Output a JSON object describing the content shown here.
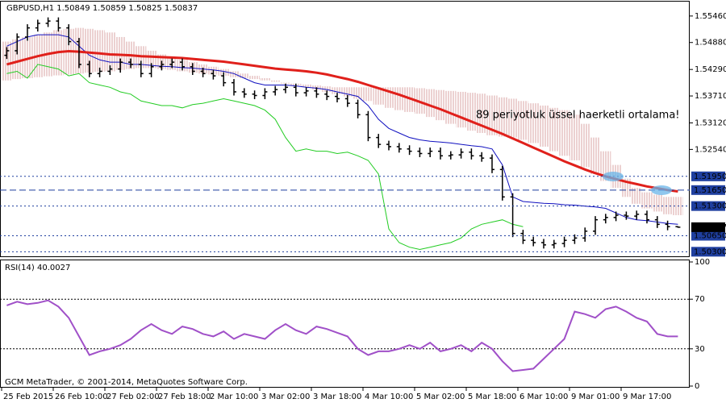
{
  "chart_data": [
    {
      "type": "candlestick",
      "symbol": "GBPUSD,H1",
      "bar_color": "#000000",
      "annotation": "89 periyotluk üssel haerketli ortalama!",
      "annotation_color": "#e0201b",
      "categories": [
        "25 Feb 2015",
        null,
        null,
        null,
        null,
        "26 Feb 10:00",
        null,
        null,
        null,
        null,
        "27 Feb 02:00",
        null,
        null,
        null,
        null,
        "27 Feb 18:00",
        null,
        null,
        null,
        null,
        "2 Mar 10:00",
        null,
        null,
        null,
        null,
        "3 Mar 02:00",
        null,
        null,
        null,
        null,
        "3 Mar 18:00",
        null,
        null,
        null,
        null,
        "4 Mar 10:00",
        null,
        null,
        null,
        null,
        "5 Mar 02:00",
        null,
        null,
        null,
        null,
        "5 Mar 18:00",
        null,
        null,
        null,
        null,
        "6 Mar 10:00",
        null,
        null,
        null,
        null,
        "9 Mar 01:00",
        null,
        null,
        null,
        null,
        "9 Mar 17:00",
        null,
        null,
        null,
        null,
        null
      ],
      "open": [
        1.546,
        1.547,
        1.55,
        1.552,
        1.553,
        1.5535,
        1.552,
        1.549,
        1.544,
        1.542,
        1.5425,
        1.543,
        1.5445,
        1.544,
        1.542,
        1.5435,
        1.544,
        1.5445,
        1.5435,
        1.5425,
        1.542,
        1.5415,
        1.54,
        1.538,
        1.5375,
        1.5372,
        1.538,
        1.5385,
        1.539,
        1.5378,
        1.5382,
        1.5375,
        1.537,
        1.5365,
        1.5355,
        1.533,
        1.528,
        1.5265,
        1.526,
        1.5255,
        1.525,
        1.5245,
        1.525,
        1.524,
        1.5242,
        1.5248,
        1.524,
        1.5235,
        1.521,
        1.515,
        1.507,
        1.5055,
        1.505,
        1.5045,
        1.5048,
        1.5055,
        1.506,
        1.5075,
        1.51,
        1.5105,
        1.511,
        1.5108,
        1.5112,
        1.51,
        1.509,
        1.50849
      ],
      "high": [
        1.5478,
        1.5508,
        1.5528,
        1.5538,
        1.5543,
        1.5543,
        1.5528,
        1.5498,
        1.5448,
        1.5433,
        1.5438,
        1.5453,
        1.5453,
        1.5448,
        1.5443,
        1.5448,
        1.5453,
        1.5453,
        1.5443,
        1.5433,
        1.5428,
        1.5423,
        1.5408,
        1.5388,
        1.5383,
        1.5388,
        1.5393,
        1.5398,
        1.5398,
        1.539,
        1.539,
        1.5383,
        1.5378,
        1.5373,
        1.5363,
        1.5338,
        1.5288,
        1.5273,
        1.5268,
        1.5263,
        1.5258,
        1.5258,
        1.5258,
        1.525,
        1.5256,
        1.5256,
        1.5248,
        1.5243,
        1.5218,
        1.5158,
        1.5078,
        1.5063,
        1.5058,
        1.5056,
        1.5063,
        1.5068,
        1.5083,
        1.5108,
        1.5113,
        1.5118,
        1.5118,
        1.512,
        1.512,
        1.5108,
        1.5098,
        1.50859
      ],
      "low": [
        1.5452,
        1.5462,
        1.5492,
        1.5512,
        1.5522,
        1.5512,
        1.5482,
        1.5432,
        1.5412,
        1.5412,
        1.5417,
        1.5422,
        1.5432,
        1.5412,
        1.5412,
        1.5427,
        1.5432,
        1.5427,
        1.5417,
        1.5412,
        1.5407,
        1.5392,
        1.5372,
        1.5367,
        1.5364,
        1.5364,
        1.5372,
        1.5377,
        1.537,
        1.537,
        1.5367,
        1.5362,
        1.5357,
        1.5347,
        1.5322,
        1.5272,
        1.5257,
        1.5252,
        1.5247,
        1.5242,
        1.5237,
        1.5237,
        1.5232,
        1.5232,
        1.5234,
        1.5232,
        1.5227,
        1.5202,
        1.5142,
        1.5062,
        1.5047,
        1.5042,
        1.5037,
        1.5037,
        1.504,
        1.5047,
        1.5052,
        1.5067,
        1.5092,
        1.5097,
        1.51,
        1.51,
        1.5092,
        1.5082,
        1.5077,
        1.50825
      ],
      "close": [
        1.547,
        1.55,
        1.552,
        1.553,
        1.5535,
        1.552,
        1.549,
        1.544,
        1.542,
        1.5425,
        1.543,
        1.5445,
        1.544,
        1.542,
        1.5435,
        1.544,
        1.5445,
        1.5435,
        1.5425,
        1.542,
        1.5415,
        1.54,
        1.538,
        1.5375,
        1.5372,
        1.538,
        1.5385,
        1.539,
        1.5378,
        1.5382,
        1.5375,
        1.537,
        1.5365,
        1.5355,
        1.533,
        1.528,
        1.5265,
        1.526,
        1.5255,
        1.525,
        1.5245,
        1.525,
        1.524,
        1.5242,
        1.5248,
        1.524,
        1.5235,
        1.521,
        1.515,
        1.507,
        1.5055,
        1.505,
        1.5045,
        1.5048,
        1.5055,
        1.506,
        1.5075,
        1.51,
        1.5105,
        1.511,
        1.5108,
        1.5112,
        1.51,
        1.509,
        1.50849,
        1.50837
      ],
      "cloud_color": "#d9a3a3",
      "cloud_upper": [
        1.549,
        1.5495,
        1.55,
        1.5505,
        1.551,
        1.5515,
        1.5518,
        1.552,
        1.5518,
        1.5515,
        1.551,
        1.55,
        1.549,
        1.548,
        1.547,
        1.5462,
        1.5455,
        1.545,
        1.5445,
        1.544,
        1.5435,
        1.543,
        1.5425,
        1.542,
        1.5415,
        1.541,
        1.5405,
        1.54,
        1.5398,
        1.5396,
        1.5394,
        1.5392,
        1.539,
        1.539,
        1.539,
        1.539,
        1.539,
        1.539,
        1.539,
        1.539,
        1.5388,
        1.5386,
        1.5384,
        1.5382,
        1.538,
        1.5378,
        1.5376,
        1.5372,
        1.5368,
        1.5365,
        1.536,
        1.5355,
        1.535,
        1.5345,
        1.534,
        1.533,
        1.531,
        1.528,
        1.525,
        1.522,
        1.519,
        1.517,
        1.516,
        1.5155,
        1.515,
        1.515
      ],
      "cloud_lower": [
        1.5405,
        1.5408,
        1.541,
        1.5412,
        1.5414,
        1.5416,
        1.5418,
        1.542,
        1.5422,
        1.5424,
        1.5425,
        1.5428,
        1.543,
        1.5432,
        1.5432,
        1.543,
        1.5428,
        1.5425,
        1.5422,
        1.542,
        1.5418,
        1.5415,
        1.5412,
        1.541,
        1.5408,
        1.5405,
        1.5402,
        1.5398,
        1.5394,
        1.539,
        1.5385,
        1.538,
        1.5375,
        1.537,
        1.5365,
        1.536,
        1.5352,
        1.5345,
        1.534,
        1.5336,
        1.5332,
        1.5325,
        1.5318,
        1.531,
        1.5302,
        1.5295,
        1.529,
        1.5285,
        1.5282,
        1.528,
        1.5275,
        1.5268,
        1.526,
        1.525,
        1.524,
        1.523,
        1.5215,
        1.52,
        1.5185,
        1.517,
        1.515,
        1.5135,
        1.5125,
        1.5118,
        1.5112,
        1.511
      ],
      "series": [
        {
          "color": "#22cc22",
          "width": 1,
          "values": [
            1.542,
            1.5425,
            1.541,
            1.544,
            1.5435,
            1.543,
            1.5415,
            1.542,
            1.54,
            1.5395,
            1.539,
            1.538,
            1.5375,
            1.536,
            1.5355,
            1.535,
            1.535,
            1.5345,
            1.5352,
            1.5355,
            1.536,
            1.5365,
            1.536,
            1.5355,
            1.535,
            1.534,
            1.532,
            1.528,
            1.525,
            1.5255,
            1.525,
            1.525,
            1.5245,
            1.5248,
            1.524,
            1.523,
            1.52,
            1.508,
            1.505,
            1.504,
            1.5035,
            1.504,
            1.5045,
            1.505,
            1.506,
            1.508,
            1.509,
            1.5095,
            1.51,
            1.509,
            1.5085,
            null,
            null,
            null,
            null,
            null,
            null,
            null,
            null,
            null,
            null,
            null,
            null,
            null,
            null,
            null
          ]
        },
        {
          "color": "#1010c0",
          "width": 1,
          "values": [
            1.548,
            1.549,
            1.55,
            1.5505,
            1.5505,
            1.5505,
            1.55,
            1.548,
            1.546,
            1.545,
            1.5445,
            1.5445,
            1.544,
            1.544,
            1.5438,
            1.5436,
            1.5435,
            1.5433,
            1.5432,
            1.543,
            1.5428,
            1.5425,
            1.542,
            1.541,
            1.54,
            1.5395,
            1.5395,
            1.5395,
            1.5393,
            1.539,
            1.5388,
            1.5385,
            1.538,
            1.5375,
            1.537,
            1.535,
            1.532,
            1.53,
            1.529,
            1.528,
            1.5275,
            1.5272,
            1.527,
            1.5268,
            1.5265,
            1.5262,
            1.526,
            1.5255,
            1.522,
            1.515,
            1.514,
            1.5138,
            1.5136,
            1.5135,
            1.5133,
            1.5132,
            1.513,
            1.5128,
            1.5125,
            1.5115,
            1.5105,
            1.51,
            1.5098,
            1.5095,
            1.5092,
            1.509
          ]
        },
        {
          "color": "#e0201b",
          "width": 3,
          "values": [
            1.544,
            1.5446,
            1.5452,
            1.5458,
            1.5463,
            1.5467,
            1.5469,
            1.5468,
            1.5466,
            1.5464,
            1.5462,
            1.5461,
            1.546,
            1.5458,
            1.5457,
            1.5456,
            1.5455,
            1.5454,
            1.5452,
            1.545,
            1.5448,
            1.5446,
            1.5443,
            1.544,
            1.5437,
            1.5434,
            1.5431,
            1.5429,
            1.5427,
            1.5425,
            1.5422,
            1.5418,
            1.5413,
            1.5408,
            1.5402,
            1.5395,
            1.5388,
            1.5381,
            1.5374,
            1.5366,
            1.5358,
            1.535,
            1.5342,
            1.5333,
            1.5324,
            1.5315,
            1.5306,
            1.5297,
            1.5288,
            1.5278,
            1.5268,
            1.5258,
            1.5248,
            1.5238,
            1.5228,
            1.5219,
            1.521,
            1.5202,
            1.5195,
            1.5189,
            1.5183,
            1.5178,
            1.5173,
            1.5169,
            1.5165,
            1.5162
          ]
        }
      ],
      "ylim": [
        1.502,
        1.5574
      ],
      "yticks": [
        {
          "value": 1.5546,
          "label": "1.55460"
        },
        {
          "value": 1.5488,
          "label": "1.54880"
        },
        {
          "value": 1.5429,
          "label": "1.54290"
        },
        {
          "value": 1.5371,
          "label": "1.53710"
        },
        {
          "value": 1.5312,
          "label": "1.53120"
        },
        {
          "value": 1.5254,
          "label": "1.52540"
        }
      ],
      "levels": [
        {
          "value": 1.5195,
          "label": "1.51950",
          "style": "dotted"
        },
        {
          "value": 1.5165,
          "label": "1.51650",
          "style": "dashed"
        },
        {
          "value": 1.513,
          "label": "1.51300",
          "style": "dotted"
        },
        {
          "value": 1.5065,
          "label": "1.50650",
          "style": "dotted"
        },
        {
          "value": 1.503,
          "label": "1.50300",
          "style": "dotted"
        }
      ],
      "level_color": "#1f3f9f"
    },
    {
      "type": "line",
      "title": "RSI(14)",
      "footer": "GCM MetaTrader, © 2001-2014, MetaQuotes Software Corp.",
      "series": [
        {
          "color": "#a050c8",
          "width": 2,
          "values": [
            65,
            68,
            66,
            67,
            69,
            64,
            55,
            40,
            25,
            28,
            30,
            33,
            38,
            45,
            50,
            45,
            42,
            48,
            46,
            42,
            40,
            44,
            38,
            42,
            40,
            38,
            45,
            50,
            45,
            42,
            48,
            46,
            43,
            40,
            30,
            25,
            28,
            28,
            30,
            33,
            30,
            35,
            28,
            30,
            33,
            28,
            35,
            30,
            20,
            12,
            13,
            14,
            22,
            30,
            38,
            60,
            58,
            55,
            62,
            64,
            60,
            55,
            52,
            42,
            40,
            40.0027
          ]
        }
      ],
      "ylim": [
        0,
        100
      ],
      "yticks": [
        100,
        70,
        30,
        0
      ],
      "levels": [
        70,
        30
      ]
    }
  ]
}
